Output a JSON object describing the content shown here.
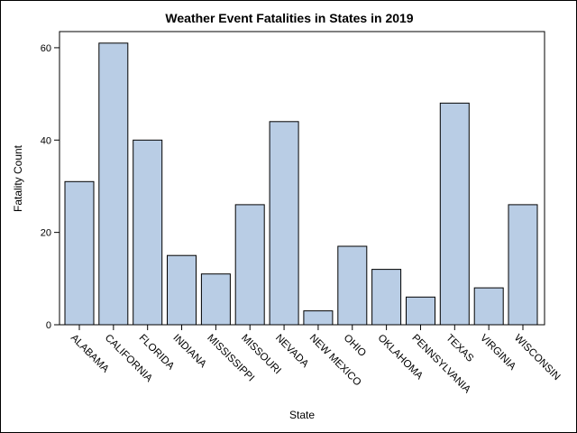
{
  "chart_data": {
    "type": "bar",
    "title": "Weather Event Fatalities in States in 2019",
    "xlabel": "State",
    "ylabel": "Fatality Count",
    "categories": [
      "ALABAMA",
      "CALIFORNIA",
      "FLORIDA",
      "INDIANA",
      "MISSISSIPPI",
      "MISSOURI",
      "NEVADA",
      "NEW MEXICO",
      "OHIO",
      "OKLAHOMA",
      "PENNSYLVANIA",
      "TEXAS",
      "VIRGINIA",
      "WISCONSIN"
    ],
    "values": [
      31,
      61,
      40,
      15,
      11,
      26,
      44,
      3,
      17,
      12,
      6,
      48,
      8,
      26
    ],
    "yticks": [
      0,
      20,
      40,
      60
    ],
    "ylim": [
      0,
      63.5
    ],
    "grid": false,
    "legend": "none",
    "colors": {
      "bar_fill": "#b9cde5",
      "bar_stroke": "#000000",
      "axis": "#000000"
    }
  }
}
